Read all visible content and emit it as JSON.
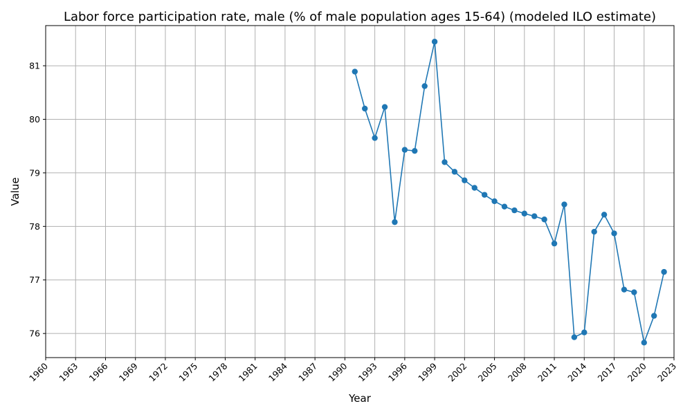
{
  "chart_data": {
    "type": "line",
    "title": "Labor force participation rate, male (% of male population ages 15-64) (modeled ILO estimate)",
    "xlabel": "Year",
    "ylabel": "Value",
    "xlim": [
      1960,
      2023
    ],
    "ylim": [
      75.55,
      81.75
    ],
    "grid": true,
    "x_ticks": [
      1960,
      1963,
      1966,
      1969,
      1972,
      1975,
      1978,
      1981,
      1984,
      1987,
      1990,
      1993,
      1996,
      1999,
      2002,
      2005,
      2008,
      2011,
      2014,
      2017,
      2020,
      2023
    ],
    "y_ticks": [
      76,
      77,
      78,
      79,
      80,
      81
    ],
    "color": "#1f77b4",
    "x": [
      1991,
      1992,
      1993,
      1994,
      1995,
      1996,
      1997,
      1998,
      1999,
      2000,
      2001,
      2002,
      2003,
      2004,
      2005,
      2006,
      2007,
      2008,
      2009,
      2010,
      2011,
      2012,
      2013,
      2014,
      2015,
      2016,
      2017,
      2018,
      2019,
      2020,
      2021,
      2022
    ],
    "y": [
      80.89,
      80.2,
      79.65,
      80.23,
      78.08,
      79.43,
      79.41,
      80.62,
      81.45,
      79.2,
      79.02,
      78.86,
      78.72,
      78.59,
      78.47,
      78.37,
      78.3,
      78.24,
      78.19,
      78.13,
      77.68,
      78.41,
      75.93,
      76.02,
      77.9,
      78.22,
      77.87,
      76.82,
      76.77,
      75.83,
      76.33,
      77.15
    ]
  }
}
